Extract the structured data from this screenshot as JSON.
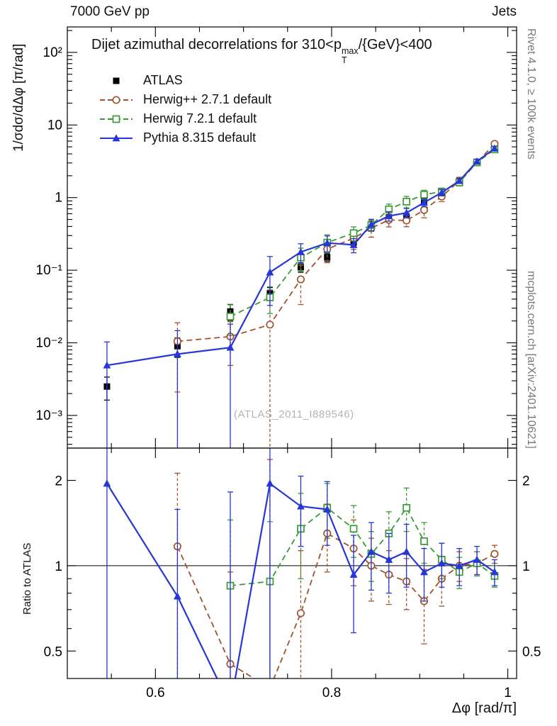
{
  "page": {
    "header_left": "7000 GeV pp",
    "header_right": "Jets",
    "watermark": "(ATLAS_2011_I889546)",
    "side_note_top": "Rivet 4.1.0, ≥ 100k events",
    "side_note_bottom": "mcplots.cern.ch [arXiv:2401.10621]"
  },
  "chart_data": {
    "type": "line",
    "title": {
      "pre": "Dijet azimuthal decorrelations for 310<p",
      "sup": "max",
      "sub": "T",
      "post": "/{GeV}<400"
    },
    "xlabel": "Δφ [rad/π]",
    "ylabel_main": "1/σdσ/dΔφ [π/rad]",
    "ylabel_ratio": "Ratio to ATLAS",
    "x_range": [
      0.5,
      1.01
    ],
    "y_range_main": [
      0.000355,
      224
    ],
    "y_range_ratio": [
      0.4,
      2.6
    ],
    "grid": false,
    "legend_position": "top-left",
    "x_ticks": {
      "major": [
        0.6,
        0.8,
        1.0
      ],
      "labels": [
        "0.6",
        "0.8",
        "1"
      ],
      "minor_step": 0.05
    },
    "y_ticks_main": {
      "values": [
        100,
        10,
        1,
        0.1,
        0.01,
        0.001
      ],
      "labels": [
        "10²",
        "10",
        "1",
        "10⁻¹",
        "10⁻²",
        "10⁻³"
      ]
    },
    "y_ticks_ratio": {
      "values": [
        2,
        1,
        0.5
      ],
      "labels": [
        "2",
        "1",
        "0.5"
      ],
      "minor": [
        0.6,
        0.7,
        0.8,
        0.9
      ]
    },
    "x": [
      0.545,
      0.625,
      0.685,
      0.73,
      0.765,
      0.795,
      0.825,
      0.845,
      0.865,
      0.885,
      0.905,
      0.925,
      0.945,
      0.965,
      0.985
    ],
    "series": [
      {
        "name": "ATLAS",
        "color": "#000000",
        "marker": "square-filled",
        "line": "none",
        "values": [
          0.0025,
          0.009,
          0.027,
          0.048,
          0.11,
          0.15,
          0.24,
          0.38,
          0.53,
          0.55,
          0.9,
          1.15,
          1.7,
          3.0,
          5.0
        ],
        "rel_err": [
          0.35,
          0.3,
          0.25,
          0.2,
          0.15,
          0.12,
          0.1,
          0.1,
          0.08,
          0.08,
          0.07,
          0.06,
          0.05,
          0.05,
          0.04
        ],
        "ratio": null,
        "ratio_err": null
      },
      {
        "name": "Herwig++ 2.7.1 default",
        "color": "#a0522d",
        "marker": "circle-open",
        "line": "dashed",
        "values": [
          null,
          0.0105,
          0.0122,
          0.0178,
          0.0748,
          0.195,
          0.276,
          0.38,
          0.493,
          0.484,
          0.675,
          1.035,
          1.7,
          3.06,
          5.5
        ],
        "rel_err": [
          null,
          0.8,
          0.6,
          2.0,
          0.55,
          0.35,
          0.3,
          0.25,
          0.2,
          0.18,
          0.22,
          0.15,
          0.12,
          0.08,
          0.07
        ],
        "ratio": [
          null,
          1.17,
          0.45,
          0.37,
          0.68,
          1.3,
          1.15,
          1.0,
          0.93,
          0.88,
          0.75,
          0.9,
          1.0,
          1.02,
          1.1
        ],
        "ratio_err": [
          null,
          0.95,
          0.5,
          2.0,
          0.45,
          0.35,
          0.3,
          0.25,
          0.2,
          0.18,
          0.22,
          0.18,
          0.12,
          0.1,
          0.08
        ]
      },
      {
        "name": "Herwig 7.2.1 default",
        "color": "#3a9b35",
        "marker": "square-open",
        "line": "dashed",
        "values": [
          null,
          null,
          0.023,
          0.0422,
          0.149,
          0.24,
          0.324,
          0.418,
          0.689,
          0.88,
          1.098,
          1.208,
          1.615,
          3.06,
          4.6
        ],
        "rel_err": [
          null,
          null,
          0.45,
          0.4,
          0.35,
          0.28,
          0.22,
          0.18,
          0.18,
          0.18,
          0.15,
          0.12,
          0.1,
          0.08,
          0.06
        ],
        "ratio": [
          null,
          null,
          0.85,
          0.88,
          1.35,
          1.6,
          1.35,
          1.1,
          1.3,
          1.6,
          1.22,
          1.05,
          0.95,
          1.02,
          0.92
        ],
        "ratio_err": [
          null,
          null,
          0.6,
          0.55,
          0.45,
          0.35,
          0.28,
          0.22,
          0.25,
          0.28,
          0.2,
          0.15,
          0.12,
          0.1,
          0.08
        ]
      },
      {
        "name": "Pythia 8.315 default",
        "color": "#2736d4",
        "marker": "triangle-filled",
        "line": "solid",
        "values": [
          0.0049,
          0.007,
          0.0086,
          0.0936,
          0.178,
          0.237,
          0.223,
          0.426,
          0.557,
          0.616,
          0.855,
          1.173,
          1.7,
          3.15,
          4.75
        ],
        "rel_err": [
          1.1,
          1.1,
          1.1,
          0.65,
          0.3,
          0.25,
          0.22,
          0.18,
          0.15,
          0.15,
          0.12,
          0.1,
          0.08,
          0.07,
          0.06
        ],
        "ratio": [
          1.95,
          0.78,
          0.32,
          1.95,
          1.62,
          1.58,
          0.93,
          1.12,
          1.05,
          1.12,
          0.95,
          1.02,
          1.0,
          1.05,
          0.95
        ],
        "ratio_err": [
          2.5,
          0.8,
          1.5,
          1.6,
          0.45,
          0.4,
          0.35,
          0.3,
          0.25,
          0.28,
          0.2,
          0.18,
          0.15,
          0.12,
          0.1
        ]
      }
    ]
  }
}
